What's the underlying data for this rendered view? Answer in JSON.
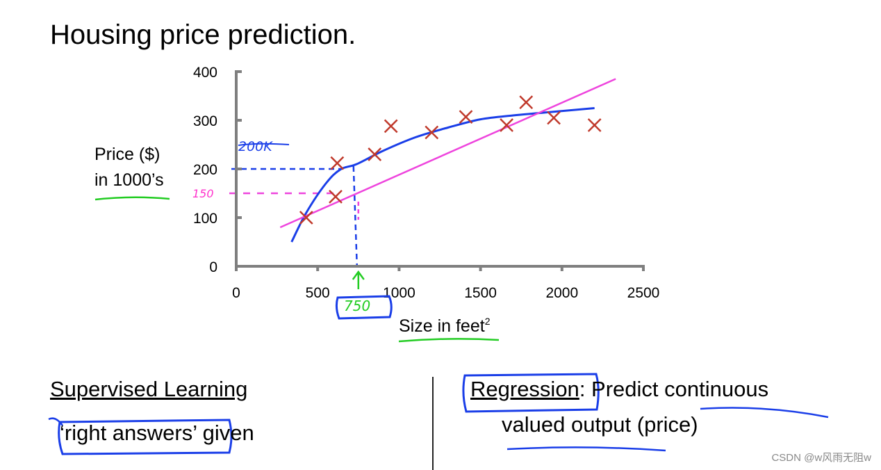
{
  "title": "Housing price prediction.",
  "chart_data": {
    "type": "scatter",
    "title": "",
    "ylabel_lines": [
      "Price ($)",
      "in 1000’s"
    ],
    "xlabel": "Size in feet",
    "xlabel_superscript": "2",
    "xlim": [
      0,
      2500
    ],
    "ylim": [
      0,
      400
    ],
    "x_ticks": [
      "0",
      "500",
      "1000",
      "1500",
      "2000",
      "2500"
    ],
    "y_ticks": [
      "0",
      "100",
      "200",
      "300",
      "400"
    ],
    "grid": false,
    "points": [
      {
        "x": 430,
        "y": 100
      },
      {
        "x": 610,
        "y": 143
      },
      {
        "x": 620,
        "y": 212
      },
      {
        "x": 850,
        "y": 230
      },
      {
        "x": 950,
        "y": 288
      },
      {
        "x": 1200,
        "y": 275
      },
      {
        "x": 1410,
        "y": 307
      },
      {
        "x": 1660,
        "y": 290
      },
      {
        "x": 1780,
        "y": 337
      },
      {
        "x": 1950,
        "y": 305
      },
      {
        "x": 2200,
        "y": 290
      }
    ],
    "fits": [
      {
        "kind": "curve",
        "color": "#1a3ee8",
        "points": [
          [
            340,
            50
          ],
          [
            430,
            110
          ],
          [
            550,
            170
          ],
          [
            640,
            199
          ],
          [
            740,
            210
          ],
          [
            900,
            237
          ],
          [
            1100,
            265
          ],
          [
            1300,
            285
          ],
          [
            1500,
            302
          ],
          [
            1700,
            310
          ],
          [
            1900,
            316
          ],
          [
            2200,
            325
          ]
        ]
      },
      {
        "kind": "line",
        "color": "#ee44dd",
        "points": [
          [
            270,
            80
          ],
          [
            2330,
            385
          ]
        ]
      }
    ],
    "annotations": {
      "query_x": 750,
      "blue_value_y": 200,
      "pink_value_y": 150,
      "blue_note": "200K",
      "pink_note": "150",
      "x_note": "750"
    }
  },
  "bottom": {
    "left_heading": "Supervised Learning",
    "left_quote_open": "‘",
    "left_boxed": "right answers’",
    "left_tail": " given",
    "right_boxed": "Regression",
    "right_colon": ": Predict ",
    "right_underlined": "continuous",
    "right_line2_a": "valued output",
    "right_line2_b": " (price)"
  },
  "watermark": "CSDN @w风雨无阻w",
  "colors": {
    "axis": "#7f7f7f",
    "marker": "#c0392b",
    "blue_ink": "#1a3ee8",
    "pink_ink": "#ee44dd",
    "green_ink": "#22cc22"
  }
}
